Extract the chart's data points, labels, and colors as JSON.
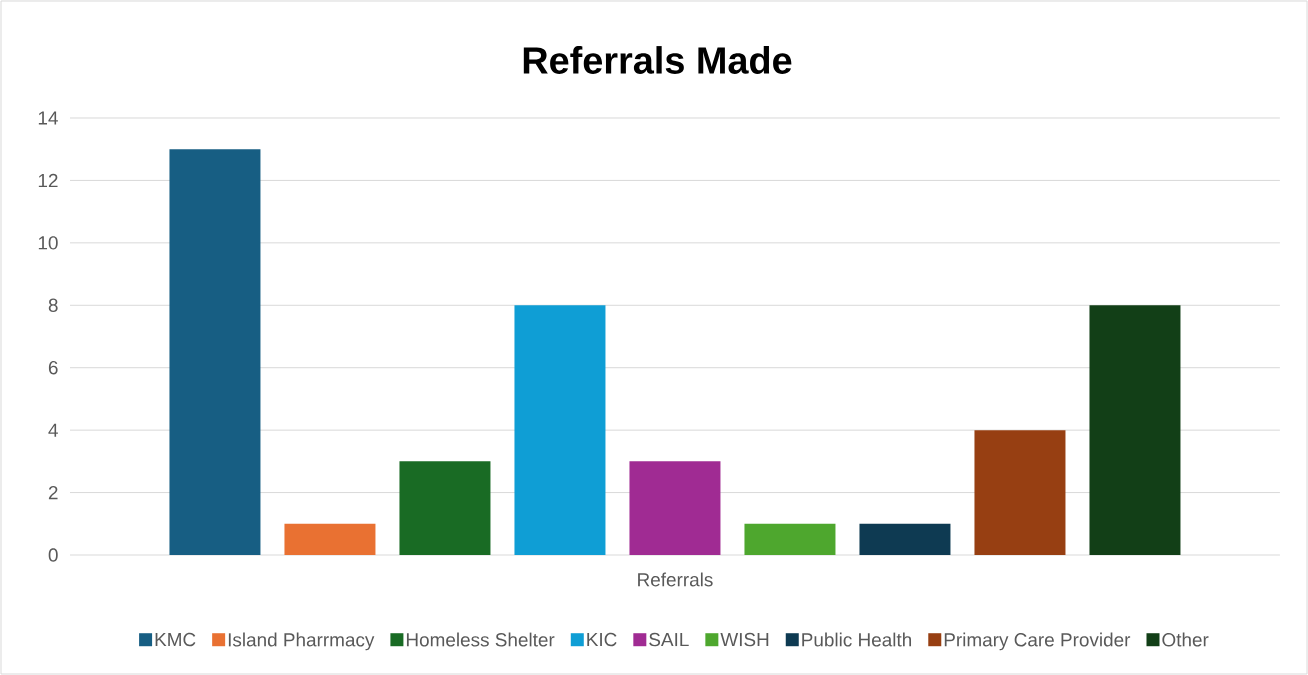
{
  "chart_data": {
    "type": "bar",
    "title": "Referrals Made",
    "categories": [
      "Referrals"
    ],
    "series": [
      {
        "name": "KMC",
        "color": "#175e83",
        "values": [
          13
        ]
      },
      {
        "name": "Island Pharrmacy",
        "color": "#e97132",
        "values": [
          1
        ]
      },
      {
        "name": "Homeless Shelter",
        "color": "#196b24",
        "values": [
          3
        ]
      },
      {
        "name": "KIC",
        "color": "#0f9ed5",
        "values": [
          8
        ]
      },
      {
        "name": "SAIL",
        "color": "#a02b93",
        "values": [
          3
        ]
      },
      {
        "name": "WISH",
        "color": "#4ea72e",
        "values": [
          1
        ]
      },
      {
        "name": "Public Health",
        "color": "#0e3a52",
        "values": [
          1
        ]
      },
      {
        "name": "Primary Care Provider",
        "color": "#973f12",
        "values": [
          4
        ]
      },
      {
        "name": "Other",
        "color": "#123f17",
        "values": [
          8
        ]
      }
    ],
    "ylim": [
      0,
      14
    ],
    "yticks": [
      0,
      2,
      4,
      6,
      8,
      10,
      12,
      14
    ],
    "grid": "y",
    "legend": "bottom"
  }
}
